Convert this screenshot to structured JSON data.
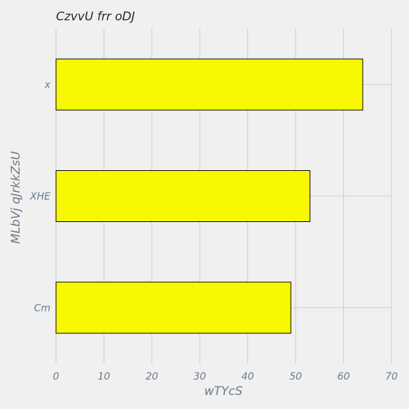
{
  "chart_data": {
    "type": "bar",
    "orientation": "horizontal",
    "title": "CzvvU frr oDJ",
    "xlabel": "wTYcS",
    "ylabel": "MLbVj qJrkkZsU",
    "categories": [
      "Cm",
      "XHE",
      "x"
    ],
    "values": [
      49,
      53,
      64
    ],
    "xlim": [
      0,
      70
    ],
    "xticks": [
      0,
      10,
      20,
      30,
      40,
      50,
      60,
      70
    ],
    "grid": true,
    "bar_color": "#f8f800",
    "bar_edge_color": "#000000",
    "background": "#f0f0f0"
  }
}
